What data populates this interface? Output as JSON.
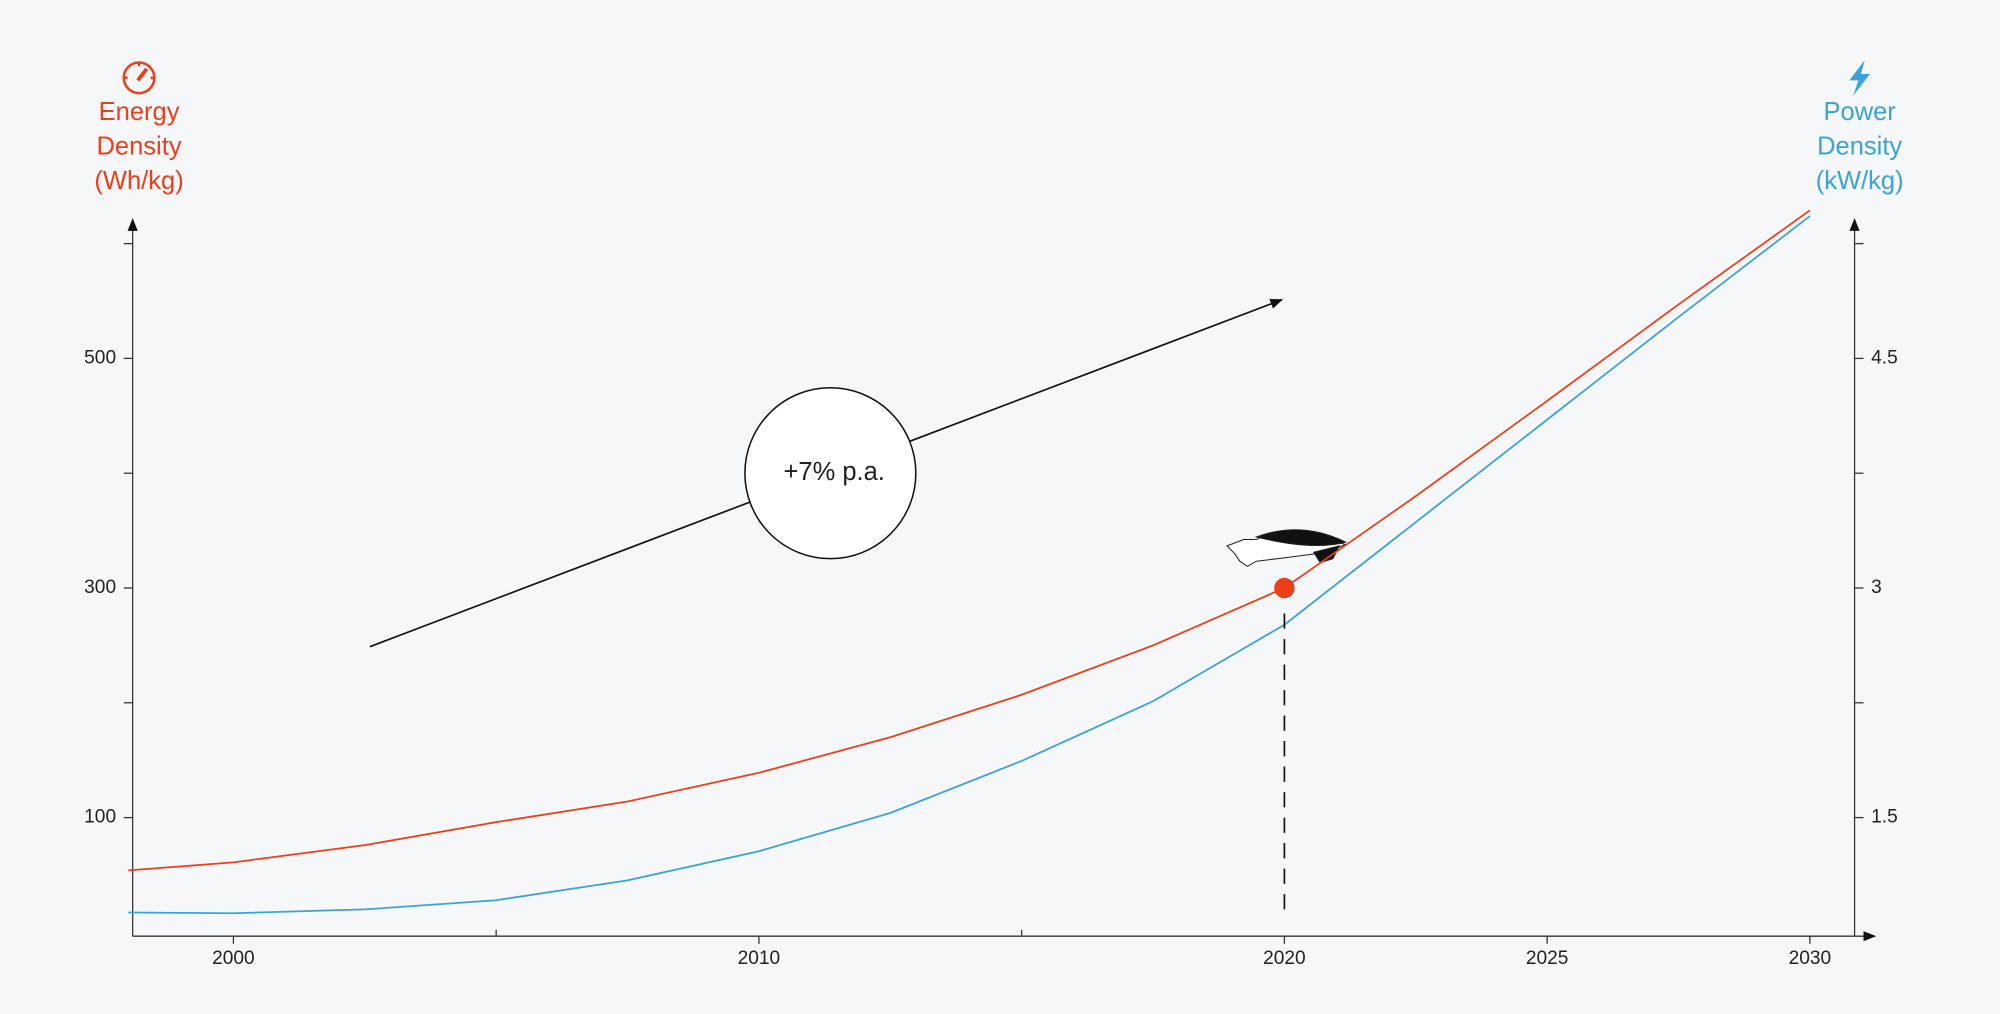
{
  "chart_data": {
    "type": "line",
    "y_label": "Energy Density (Wh/kg)",
    "y2_label": "Power Density (kW/kg)",
    "annotation": "+7% p.a.",
    "x": [
      1998,
      2000,
      2002.5,
      2005,
      2007.5,
      2010,
      2012.5,
      2015,
      2017.5,
      2020,
      2022.5,
      2025,
      2027.5,
      2030
    ],
    "series": [
      {
        "name": "Energy Density (Wh/kg)",
        "color": "#ee3e1a",
        "values": [
          54,
          61,
          76,
          96,
          114,
          139,
          170,
          207,
          250,
          300,
          380,
          463,
          547,
          629
        ]
      },
      {
        "name": "Power Density (kW/kg)",
        "color": "#3aa3d8",
        "axis": "y2",
        "values": [
          0.88,
          0.875,
          0.9,
          0.96,
          1.09,
          1.28,
          1.53,
          1.87,
          2.26,
          2.76,
          3.43,
          4.1,
          4.77,
          5.43
        ]
      }
    ],
    "highlight": {
      "x": 2020,
      "y": 300
    },
    "xlim": [
      1998.1,
      2031.1
    ],
    "xticks": [
      2000,
      2010,
      2020,
      2025,
      2030
    ],
    "xticks_minor": [
      2005,
      2015
    ],
    "ylim": [
      0,
      620
    ],
    "yticks": [
      100,
      300,
      500
    ],
    "yticks_minor": [
      200,
      400,
      600
    ],
    "y2lim": [
      0.75,
      5.4
    ],
    "y2ticks": [
      1.5,
      3,
      4.5
    ],
    "y2ticks_minor": [
      2.25,
      3.75,
      5.25
    ]
  }
}
